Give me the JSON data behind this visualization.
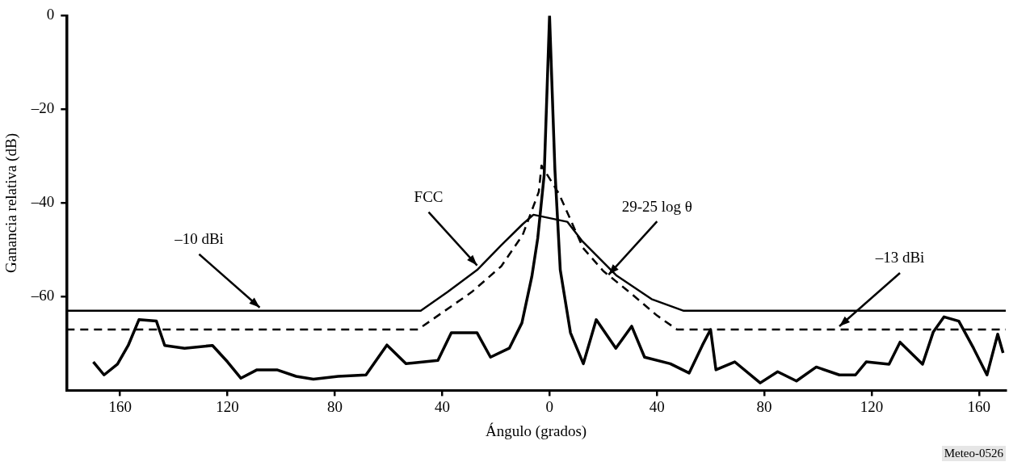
{
  "chart_data": {
    "type": "line",
    "xlabel": "Ángulo (grados)",
    "ylabel": "Ganancia relativa (dB)",
    "xlim": [
      -180,
      170
    ],
    "ylim": [
      -80,
      0
    ],
    "xticks": [
      {
        "value": -160,
        "label": "160"
      },
      {
        "value": -120,
        "label": "120"
      },
      {
        "value": -80,
        "label": "80"
      },
      {
        "value": -40,
        "label": "40"
      },
      0,
      40,
      80,
      120,
      160
    ],
    "yticks": [
      0,
      {
        "value": -20,
        "label": "–20"
      },
      {
        "value": -40,
        "label": "–40"
      },
      {
        "value": -60,
        "label": "–60"
      }
    ],
    "grid": false,
    "legend": false,
    "marker": "none",
    "series": [
      {
        "color": "#000000",
        "line_style": "solid",
        "x": [
          -180,
          -48,
          -38,
          -27,
          -18,
          -10,
          -6,
          6.6,
          12,
          25,
          38,
          50,
          170
        ],
        "values": [
          -63,
          -63,
          -59,
          -54.3,
          -49,
          -44.5,
          -42.5,
          -44,
          -48,
          -55.5,
          -60.5,
          -63,
          -63
        ]
      },
      {
        "color": "#000000",
        "line_style": "dashed",
        "x": [
          -180,
          -49,
          -39,
          -29,
          -18,
          -10,
          -4,
          -3,
          3.5,
          12.5,
          20,
          31,
          40,
          47.5,
          170
        ],
        "values": [
          -67,
          -67,
          -63,
          -59,
          -53.5,
          -46.8,
          -37.6,
          -32,
          -38,
          -49.6,
          -54.5,
          -59.6,
          -64,
          -67,
          -67
        ]
      },
      {
        "color": "#000000",
        "line_style": "solid",
        "x": [
          -170,
          -166,
          -161,
          -157,
          -153,
          -146.5,
          -143.4,
          -136,
          -125.6,
          -120,
          -115,
          -109,
          -101.6,
          -94.4,
          -88,
          -78.8,
          -68.4,
          -60.6,
          -53.5,
          -41.6,
          -36.6,
          -27,
          -22,
          -15,
          -10.3,
          -6.6,
          -4.4,
          -2,
          0,
          2,
          4,
          7.8,
          12.6,
          17.4,
          24.7,
          30.6,
          35.4,
          45,
          52,
          57,
          60,
          62,
          69,
          78.5,
          85,
          92,
          99.4,
          108,
          114,
          118,
          126.5,
          130.6,
          139,
          143,
          147,
          152.5,
          158,
          163,
          167,
          169
        ],
        "values": [
          -73.9,
          -76.7,
          -74.4,
          -70.4,
          -64.9,
          -65.2,
          -70.4,
          -71,
          -70.4,
          -73.9,
          -77.4,
          -75.6,
          -75.6,
          -77,
          -77.6,
          -77,
          -76.7,
          -70.3,
          -74.3,
          -73.6,
          -67.7,
          -67.7,
          -72.9,
          -71,
          -65.6,
          -55.7,
          -47.5,
          -34,
          0,
          -32.9,
          -54.3,
          -67.7,
          -74.3,
          -64.9,
          -71,
          -66.3,
          -72.9,
          -74.3,
          -76.3,
          -70.3,
          -67,
          -75.6,
          -73.9,
          -78.4,
          -76,
          -78,
          -75,
          -76.7,
          -76.7,
          -73.9,
          -74.4,
          -69.7,
          -74.4,
          -67.5,
          -64.3,
          -65.2,
          -71,
          -76.7,
          -68,
          -72
        ]
      }
    ],
    "annotations": [
      {
        "text": "–10 dBi",
        "x": -108,
        "y": -63
      },
      {
        "text": "FCC",
        "x": -27,
        "y": -54
      },
      {
        "text": "29-25 log θ",
        "x": 22,
        "y": -56
      },
      {
        "text": "–13 dBi",
        "x": 108,
        "y": -67
      },
      "Meteo-0526"
    ]
  }
}
